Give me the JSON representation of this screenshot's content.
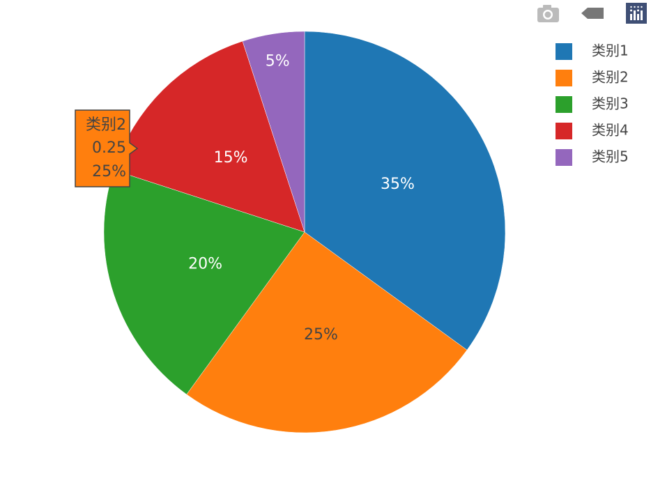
{
  "chart_data": {
    "type": "pie",
    "categories": [
      "类别1",
      "类别2",
      "类别3",
      "类别4",
      "类别5"
    ],
    "values": [
      0.35,
      0.25,
      0.2,
      0.15,
      0.05
    ],
    "value_labels": [
      "35%",
      "25%",
      "20%",
      "15%",
      "5%"
    ],
    "colors": [
      "#1f77b4",
      "#ff7f0e",
      "#2ca02c",
      "#d62728",
      "#9467bd"
    ],
    "legend": "top-right"
  }
}
